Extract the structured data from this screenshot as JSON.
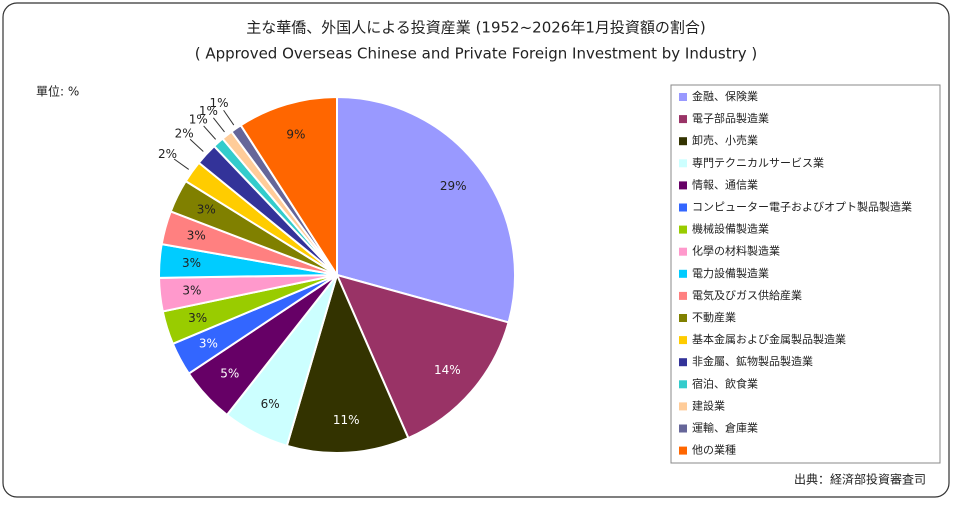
{
  "chart_data": {
    "type": "pie",
    "title": "主な華僑、外国人による投資産業 (1952~2026年1月投資額の割合)",
    "subtitle": "( Approved Overseas Chinese and Private Foreign Investment by Industry )",
    "unit": "單位: %",
    "source": "出典：経済部投資審査司",
    "categories": [
      "金融、保険業",
      "電子部品製造業",
      "卸売、小売業",
      "専門テクニカルサービス業",
      "情報、通信業",
      "コンピューター電子およびオプト製品製造業",
      "機械設備製造業",
      "化學の材料製造業",
      "電力設備製造業",
      "電気及びガス供給産業",
      "不動産業",
      "基本金属および金属製品製造業",
      "非金屬、鉱物製品製造業",
      "宿泊、飲食業",
      "建設業",
      "運輸、倉庫業",
      "他の業種"
    ],
    "values": [
      29,
      14,
      11,
      6,
      5,
      3,
      3,
      3,
      3,
      3,
      3,
      2,
      2,
      1,
      1,
      1,
      9
    ],
    "value_labels": [
      "29%",
      "14%",
      "11%",
      "6%",
      "5%",
      "3%",
      "3%",
      "3%",
      "3%",
      "3%",
      "3%",
      "2%",
      "2%",
      "1%",
      "1%",
      "1%",
      "9%"
    ],
    "colors": [
      "#9999ff",
      "#993366",
      "#333300",
      "#ccffff",
      "#660066",
      "#3366ff",
      "#99cc00",
      "#ff99cc",
      "#00ccff",
      "#ff8080",
      "#808000",
      "#ffcc00",
      "#333399",
      "#33cccc",
      "#ffcc99",
      "#666699",
      "#ff6600"
    ],
    "legend": "right"
  }
}
